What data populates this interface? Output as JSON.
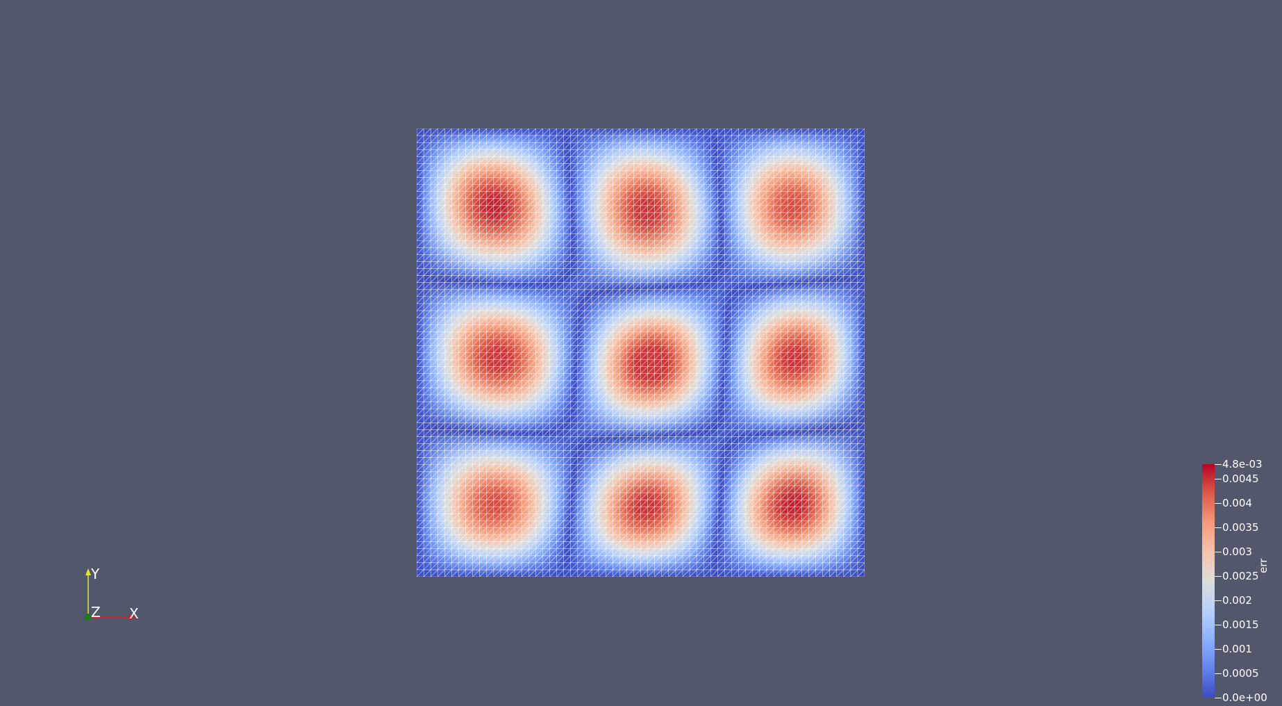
{
  "colors": {
    "background": "#52576b",
    "mesh_lines": "#ffffff",
    "colormap": [
      "#3b4cc0",
      "#6282ea",
      "#8db0fe",
      "#b8d0f9",
      "#dddddd",
      "#f5c4ac",
      "#f39a7b",
      "#d95847",
      "#b40426"
    ],
    "x_axis": "#d81e1e",
    "y_axis": "#e6e61e",
    "z_axis": "#1e7a1e"
  },
  "axes": {
    "x_label": "X",
    "y_label": "Y",
    "z_label": "Z"
  },
  "legend": {
    "title": "err",
    "range": [
      0,
      0.0048
    ],
    "ticks": [
      {
        "label": "4.8e-03",
        "value": 0.0048
      },
      {
        "label": "0.0045",
        "value": 0.0045
      },
      {
        "label": "0.004",
        "value": 0.004
      },
      {
        "label": "0.0035",
        "value": 0.0035
      },
      {
        "label": "0.003",
        "value": 0.003
      },
      {
        "label": "0.0025",
        "value": 0.0025
      },
      {
        "label": "0.002",
        "value": 0.002
      },
      {
        "label": "0.0015",
        "value": 0.0015
      },
      {
        "label": "0.001",
        "value": 0.001
      },
      {
        "label": "0.0005",
        "value": 0.0005
      },
      {
        "label": "0.0e+00",
        "value": 0
      }
    ]
  },
  "mesh": {
    "cells_per_side": 64
  }
}
